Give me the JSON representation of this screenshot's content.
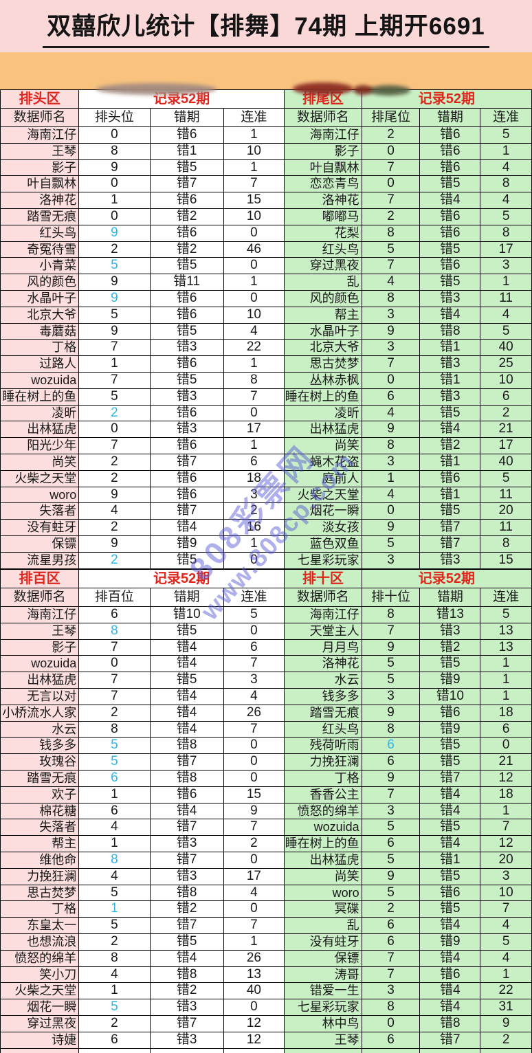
{
  "title": "双囍欣儿统计【排舞】74期 上期开6691",
  "watermark": {
    "line1": "808彩票网",
    "line2": "www.808cp.com"
  },
  "colors": {
    "page_bg": "#fbd8d8",
    "band": "#f9c27e",
    "pink_cell": "#fcdede",
    "green_cell": "#c9f0c5",
    "header_red": "#e0251d",
    "hot_blue": "#2eb6e8",
    "border": "#000000"
  },
  "sections": [
    {
      "zone_label": "排头区",
      "record_label": "记录52期",
      "columns": [
        "数据师名",
        "排头位",
        "错期",
        "连准"
      ],
      "extra_empty_rows": 0,
      "rows": [
        [
          "海南江仔",
          "0",
          "错6",
          "1"
        ],
        [
          "王琴",
          "8",
          "错1",
          "10"
        ],
        [
          "影子",
          "9",
          "错5",
          "1"
        ],
        [
          "叶自飘林",
          "0",
          "错7",
          "7"
        ],
        [
          "洛神花",
          "1",
          "错6",
          "15"
        ],
        [
          "踏雪无痕",
          "0",
          "错2",
          "10"
        ],
        [
          "红头鸟",
          "9",
          "错6",
          "0"
        ],
        [
          "奇冤待雪",
          "2",
          "错2",
          "46"
        ],
        [
          "小青菜",
          "5",
          "错5",
          "0"
        ],
        [
          "风的颜色",
          "9",
          "错11",
          "1"
        ],
        [
          "水晶叶子",
          "9",
          "错6",
          "0"
        ],
        [
          "北京大爷",
          "5",
          "错6",
          "10"
        ],
        [
          "毒蘑菇",
          "9",
          "错5",
          "4"
        ],
        [
          "丁格",
          "7",
          "错3",
          "22"
        ],
        [
          "过路人",
          "1",
          "错6",
          "1"
        ],
        [
          "wozuida",
          "7",
          "错5",
          "8"
        ],
        [
          "睡在树上的鱼",
          "5",
          "错3",
          "7"
        ],
        [
          "凌昕",
          "2",
          "错6",
          "0"
        ],
        [
          "出林猛虎",
          "0",
          "错3",
          "17"
        ],
        [
          "阳光少年",
          "7",
          "错6",
          "1"
        ],
        [
          "尚笑",
          "2",
          "错7",
          "6"
        ],
        [
          "火柴之天堂",
          "2",
          "错6",
          "18"
        ],
        [
          "woro",
          "9",
          "错6",
          "3"
        ],
        [
          "失落者",
          "4",
          "错7",
          "2"
        ],
        [
          "没有蛀牙",
          "2",
          "错4",
          "16"
        ],
        [
          "保镖",
          "9",
          "错9",
          "1"
        ],
        [
          "流星男孩",
          "2",
          "错5",
          "0"
        ]
      ]
    },
    {
      "zone_label": "排尾区",
      "record_label": "记录52期",
      "columns": [
        "数据师名",
        "排尾位",
        "错期",
        "连准"
      ],
      "extra_empty_rows": 0,
      "rows": [
        [
          "海南江仔",
          "2",
          "错6",
          "5"
        ],
        [
          "影子",
          "0",
          "错6",
          "1"
        ],
        [
          "叶自飘林",
          "7",
          "错6",
          "4"
        ],
        [
          "恋恋青鸟",
          "0",
          "错5",
          "8"
        ],
        [
          "洛神花",
          "7",
          "错4",
          "4"
        ],
        [
          "嘟嘟马",
          "2",
          "错6",
          "5"
        ],
        [
          "花梨",
          "8",
          "错6",
          "8"
        ],
        [
          "红头鸟",
          "5",
          "错5",
          "17"
        ],
        [
          "穿过黑夜",
          "7",
          "错6",
          "3"
        ],
        [
          "乱",
          "4",
          "错5",
          "1"
        ],
        [
          "风的颜色",
          "8",
          "错3",
          "11"
        ],
        [
          "帮主",
          "3",
          "错4",
          "4"
        ],
        [
          "水晶叶子",
          "9",
          "错8",
          "5"
        ],
        [
          "北京大爷",
          "3",
          "错1",
          "40"
        ],
        [
          "思古焚梦",
          "7",
          "错3",
          "25"
        ],
        [
          "丛林赤枫",
          "0",
          "错1",
          "10"
        ],
        [
          "睡在树上的鱼",
          "6",
          "错3",
          "6"
        ],
        [
          "凌昕",
          "4",
          "错5",
          "2"
        ],
        [
          "出林猛虎",
          "9",
          "错4",
          "21"
        ],
        [
          "尚笑",
          "8",
          "错2",
          "17"
        ],
        [
          "蝇木花盗",
          "3",
          "错1",
          "40"
        ],
        [
          "庭前人",
          "1",
          "错6",
          "5"
        ],
        [
          "火柴之天堂",
          "4",
          "错1",
          "11"
        ],
        [
          "烟花一瞬",
          "0",
          "错5",
          "20"
        ],
        [
          "淡女孩",
          "9",
          "错7",
          "11"
        ],
        [
          "蓝色双鱼",
          "5",
          "错7",
          "8"
        ],
        [
          "七星彩玩家",
          "3",
          "错3",
          "15"
        ]
      ]
    },
    {
      "zone_label": "排百区",
      "record_label": "记录52期",
      "columns": [
        "数据师名",
        "排百位",
        "错期",
        "连准"
      ],
      "extra_empty_rows": 1,
      "rows": [
        [
          "海南江仔",
          "6",
          "错10",
          "5"
        ],
        [
          "王琴",
          "8",
          "错5",
          "0"
        ],
        [
          "影子",
          "7",
          "错4",
          "6"
        ],
        [
          "wozuida",
          "0",
          "错4",
          "7"
        ],
        [
          "出林猛虎",
          "7",
          "错5",
          "3"
        ],
        [
          "无言以对",
          "7",
          "错4",
          "4"
        ],
        [
          "小桥流水人家",
          "2",
          "错4",
          "26"
        ],
        [
          "水云",
          "8",
          "错4",
          "7"
        ],
        [
          "钱多多",
          "5",
          "错8",
          "0"
        ],
        [
          "玫瑰谷",
          "5",
          "错7",
          "0"
        ],
        [
          "踏雪无痕",
          "6",
          "错8",
          "0"
        ],
        [
          "欢子",
          "1",
          "错6",
          "15"
        ],
        [
          "棉花糖",
          "6",
          "错4",
          "9"
        ],
        [
          "失落者",
          "4",
          "错7",
          "7"
        ],
        [
          "帮主",
          "1",
          "错3",
          "2"
        ],
        [
          "维他命",
          "8",
          "错7",
          "0"
        ],
        [
          "力挽狂澜",
          "4",
          "错3",
          "17"
        ],
        [
          "思古焚梦",
          "5",
          "错8",
          "4"
        ],
        [
          "丁格",
          "1",
          "错2",
          "0"
        ],
        [
          "东皇太一",
          "5",
          "错7",
          "7"
        ],
        [
          "也想流浪",
          "2",
          "错5",
          "1"
        ],
        [
          "愤怒的绵羊",
          "8",
          "错4",
          "26"
        ],
        [
          "笑小刀",
          "4",
          "错8",
          "13"
        ],
        [
          "火柴之天堂",
          "1",
          "错2",
          "40"
        ],
        [
          "烟花一瞬",
          "5",
          "错3",
          "0"
        ],
        [
          "穿过黑夜",
          "2",
          "错7",
          "12"
        ],
        [
          "诗婕",
          "6",
          "错3",
          "12"
        ]
      ]
    },
    {
      "zone_label": "排十区",
      "record_label": "记录52期",
      "columns": [
        "数据师名",
        "排十位",
        "错期",
        "连准"
      ],
      "extra_empty_rows": 1,
      "rows": [
        [
          "海南江仔",
          "8",
          "错13",
          "5"
        ],
        [
          "天堂主人",
          "7",
          "错3",
          "13"
        ],
        [
          "月月鸟",
          "9",
          "错2",
          "13"
        ],
        [
          "洛神花",
          "5",
          "错5",
          "1"
        ],
        [
          "水云",
          "5",
          "错9",
          "1"
        ],
        [
          "钱多多",
          "3",
          "错10",
          "1"
        ],
        [
          "踏雪无痕",
          "9",
          "错6",
          "18"
        ],
        [
          "红头鸟",
          "8",
          "错9",
          "6"
        ],
        [
          "残荷听雨",
          "6",
          "错5",
          "0"
        ],
        [
          "力挽狂澜",
          "6",
          "错5",
          "21"
        ],
        [
          "丁格",
          "9",
          "错7",
          "12"
        ],
        [
          "香香公主",
          "7",
          "错4",
          "18"
        ],
        [
          "愤怒的绵羊",
          "3",
          "错4",
          "1"
        ],
        [
          "wozuida",
          "5",
          "错5",
          "7"
        ],
        [
          "睡在树上的鱼",
          "6",
          "错4",
          "12"
        ],
        [
          "出林猛虎",
          "5",
          "错1",
          "20"
        ],
        [
          "尚笑",
          "9",
          "错5",
          "3"
        ],
        [
          "woro",
          "5",
          "错6",
          "10"
        ],
        [
          "冥碟",
          "2",
          "错5",
          "7"
        ],
        [
          "乱",
          "6",
          "错4",
          "4"
        ],
        [
          "没有蛀牙",
          "6",
          "错9",
          "5"
        ],
        [
          "保镖",
          "7",
          "错4",
          "4"
        ],
        [
          "涛哥",
          "7",
          "错6",
          "1"
        ],
        [
          "错爱一生",
          "3",
          "错4",
          "22"
        ],
        [
          "七星彩玩家",
          "8",
          "错4",
          "31"
        ],
        [
          "林中鸟",
          "0",
          "错8",
          "9"
        ],
        [
          "王琴",
          "6",
          "错7",
          "2"
        ]
      ]
    }
  ]
}
